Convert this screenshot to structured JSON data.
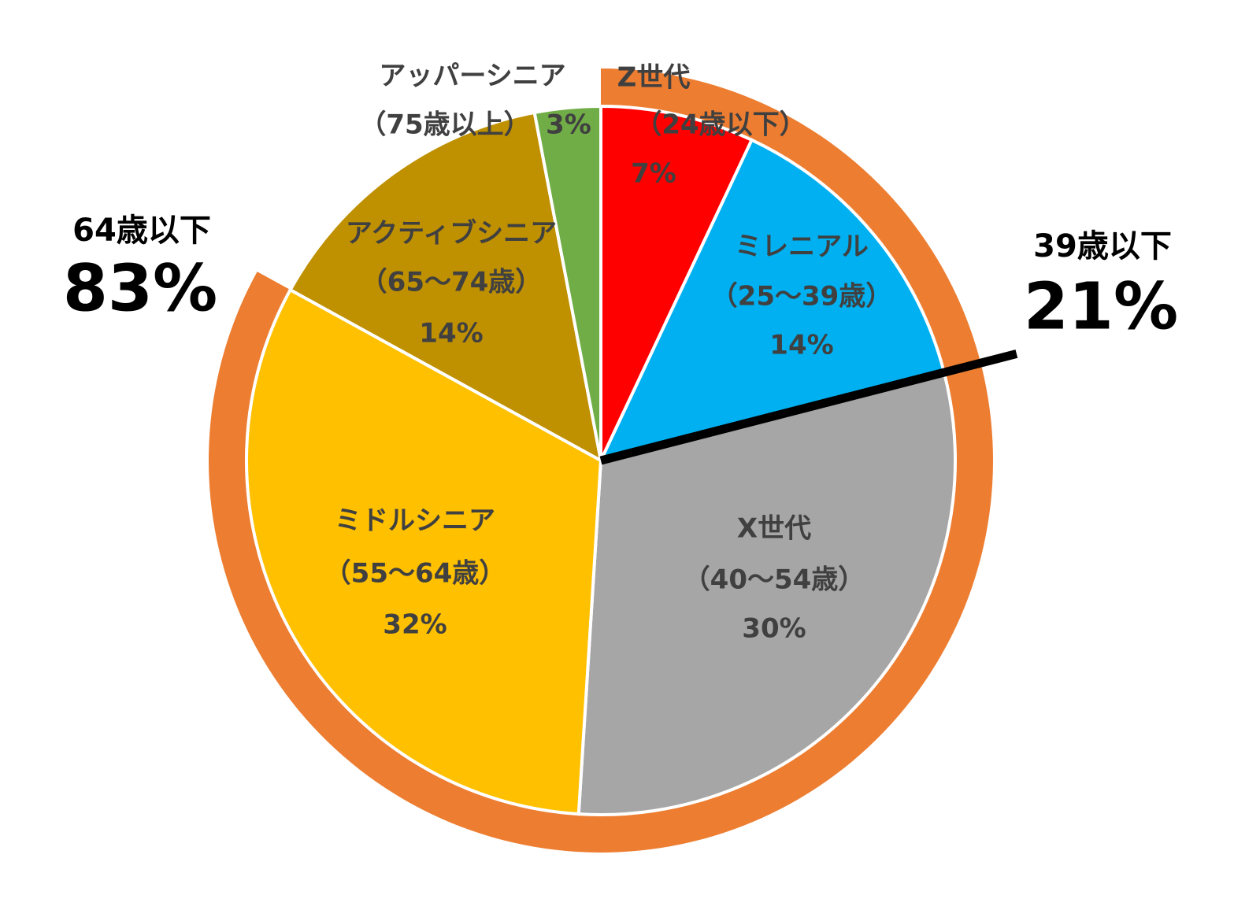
{
  "chart_data": {
    "type": "pie",
    "categories": [
      "Z世代",
      "ミレニアル",
      "X世代",
      "ミドルシニア",
      "アクティブシニア",
      "アッパーシニア"
    ],
    "age_ranges": [
      "（24歳以下）",
      "（25～39歳）",
      "（40～54歳）",
      "（55～64歳）",
      "（65～74歳）",
      "（75歳以上）"
    ],
    "values": [
      7,
      14,
      30,
      32,
      14,
      3
    ],
    "value_labels": [
      "7%",
      "14%",
      "30%",
      "32%",
      "14%",
      "3%"
    ],
    "colors": [
      "#ff0000",
      "#00b0f0",
      "#a6a6a6",
      "#ffc000",
      "#bf9000",
      "#70ad47"
    ],
    "annotations": [
      {
        "label": "64歳以下",
        "value": 83,
        "value_label": "83%",
        "color": "#ed7d31"
      },
      {
        "label": "39歳以下",
        "value": 21,
        "value_label": "21%",
        "color": "#000000"
      }
    ]
  }
}
